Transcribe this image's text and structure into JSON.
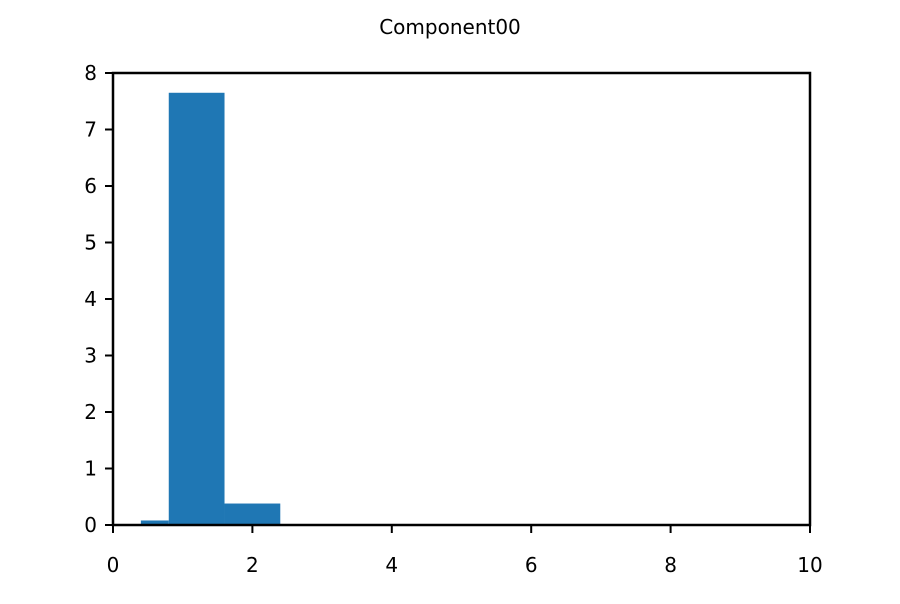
{
  "chart_data": {
    "type": "bar",
    "title": "Component00",
    "xlabel": "",
    "ylabel": "",
    "xlim": [
      0,
      10
    ],
    "ylim": [
      0,
      8
    ],
    "x_ticks": [
      "0",
      "2",
      "4",
      "6",
      "8",
      "10"
    ],
    "y_ticks": [
      "0",
      "1",
      "2",
      "3",
      "4",
      "5",
      "6",
      "7",
      "8"
    ],
    "grid": false,
    "bars": [
      {
        "x0": 0.4,
        "x1": 0.8,
        "value": 0.08
      },
      {
        "x0": 0.8,
        "x1": 1.6,
        "value": 7.65
      },
      {
        "x0": 1.6,
        "x1": 2.4,
        "value": 0.38
      }
    ],
    "bar_color": "#1f77b4"
  }
}
